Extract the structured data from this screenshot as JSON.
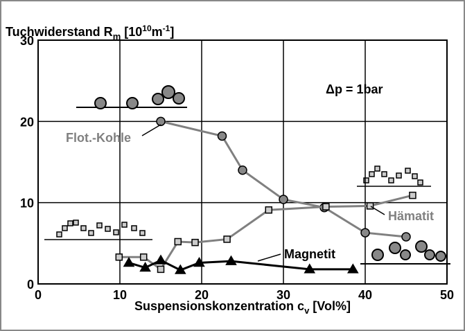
{
  "chart_data": {
    "type": "line",
    "title": [
      "Tuchwiderstand R",
      "m",
      " [10",
      "10",
      "m",
      "-1",
      "]"
    ],
    "xlabel": [
      "Suspensionskonzentration c",
      "v",
      " [Vol%]"
    ],
    "annotation": "Δp = 1bar",
    "xlim": [
      0,
      50
    ],
    "xticks": [
      0,
      10,
      20,
      30,
      40,
      50
    ],
    "ylim": [
      0,
      30
    ],
    "yticks": [
      0,
      10,
      20,
      30
    ],
    "grid": true,
    "series": [
      {
        "name": "Flot.-Kohle",
        "color": "#808080",
        "marker": "circle",
        "x": [
          15,
          22.5,
          25,
          30,
          35,
          40,
          45
        ],
        "values": [
          20,
          18.2,
          14,
          10.4,
          9.4,
          6.3,
          5.8
        ]
      },
      {
        "name": "Hämatit",
        "color": "#808080",
        "marker": "square",
        "x": [
          9.9,
          12.9,
          15,
          17.1,
          19.2,
          23.1,
          28.2,
          35.2,
          40.6,
          45.8
        ],
        "values": [
          3.3,
          3.3,
          1.8,
          5.2,
          5.1,
          5.5,
          9.1,
          9.5,
          9.6,
          10.9
        ]
      },
      {
        "name": "Magnetit",
        "color": "#000000",
        "marker": "triangle",
        "x": [
          11.1,
          13.1,
          15,
          17.4,
          19.7,
          23.6,
          33.2,
          38.5
        ],
        "values": [
          2.6,
          2,
          2.9,
          1.7,
          2.6,
          2.8,
          1.8,
          1.8
        ]
      }
    ]
  }
}
